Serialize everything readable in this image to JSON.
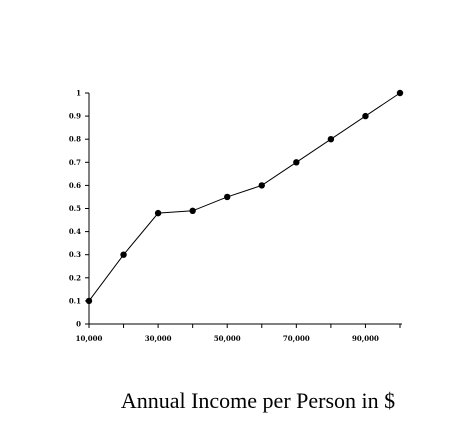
{
  "chart_data": {
    "type": "line",
    "title": "",
    "xlabel": "Annual Income per Person in $",
    "ylabel": "",
    "x": [
      10000,
      20000,
      30000,
      40000,
      50000,
      60000,
      70000,
      80000,
      90000,
      100000
    ],
    "series": [
      {
        "values": [
          0.1,
          0.3,
          0.48,
          0.49,
          0.55,
          0.6,
          0.7,
          0.8,
          0.9,
          1.0
        ]
      }
    ],
    "xlim": [
      10000,
      100000
    ],
    "ylim": [
      0,
      1
    ],
    "x_tick_labels": [
      "10,000",
      "30,000",
      "50,000",
      "70,000",
      "90,000"
    ],
    "x_tick_values": [
      10000,
      30000,
      50000,
      70000,
      90000
    ],
    "y_tick_labels": [
      "0",
      "0.1",
      "0.2",
      "0.3",
      "0.4",
      "0.5",
      "0.6",
      "0.7",
      "0.8",
      "0.9",
      "1"
    ],
    "y_tick_values": [
      0,
      0.1,
      0.2,
      0.3,
      0.4,
      0.5,
      0.6,
      0.7,
      0.8,
      0.9,
      1
    ],
    "grid": false,
    "legend": "none",
    "line_color": "#000000",
    "marker_color": "#000000"
  }
}
